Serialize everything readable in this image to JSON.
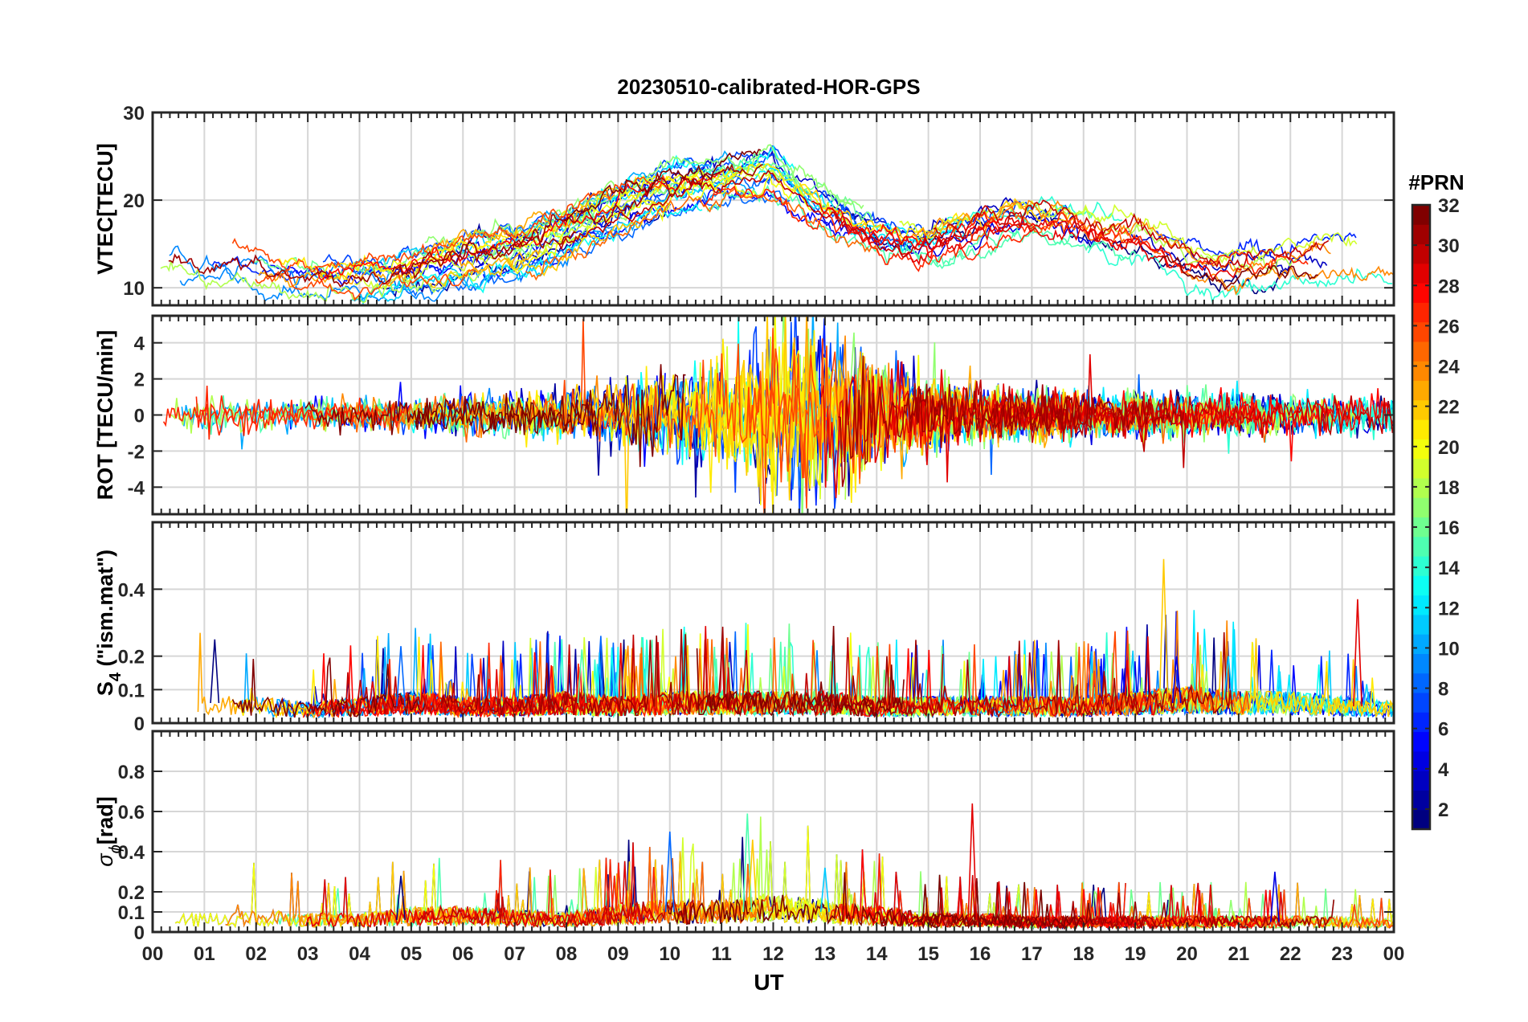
{
  "chart_data": {
    "type": "line",
    "title": "20230510-calibrated-HOR-GPS",
    "xlabel": "UT",
    "x_ticks": [
      "00",
      "01",
      "02",
      "03",
      "04",
      "05",
      "06",
      "07",
      "08",
      "09",
      "10",
      "11",
      "12",
      "13",
      "14",
      "15",
      "16",
      "17",
      "18",
      "19",
      "20",
      "21",
      "22",
      "23",
      "00"
    ],
    "x_range_hours": [
      0,
      24
    ],
    "colorbar": {
      "label": "#PRN",
      "range": [
        1,
        32
      ],
      "ticks": [
        "2",
        "4",
        "6",
        "8",
        "10",
        "12",
        "14",
        "16",
        "18",
        "20",
        "22",
        "24",
        "26",
        "28",
        "30",
        "32"
      ],
      "colormap": "jet"
    },
    "panels": [
      {
        "id": "vtec",
        "ylabel": "VTEC[TECU]",
        "ylim": [
          8,
          30
        ],
        "yticks": [
          10,
          20,
          30
        ],
        "ytick_labels": [
          "10",
          "20",
          "30"
        ],
        "description_profile": "mean VTEC per hour",
        "profile": [
          14,
          13,
          12,
          11,
          11,
          12,
          13,
          14,
          16,
          19,
          21,
          22,
          23,
          19,
          16,
          15,
          17,
          18,
          17,
          16,
          13,
          12,
          13,
          14,
          13
        ]
      },
      {
        "id": "rot",
        "ylabel": "ROT [TECU/min]",
        "ylim": [
          -5.5,
          5.5
        ],
        "yticks": [
          -4,
          -2,
          0,
          2,
          4
        ],
        "ytick_labels": [
          "-4",
          "-2",
          "0",
          "2",
          "4"
        ],
        "profile": [
          0.8,
          0.9,
          0.8,
          0.7,
          0.7,
          0.8,
          0.9,
          1.0,
          1.0,
          1.5,
          2.2,
          2.4,
          4.2,
          4.0,
          2.8,
          1.8,
          1.3,
          1.1,
          1.1,
          1.0,
          1.0,
          0.9,
          0.9,
          0.9,
          0.8
        ]
      },
      {
        "id": "s4",
        "ylabel_main": "S",
        "ylabel_sub": "4",
        "ylabel_suffix": " (\"ism.mat\")",
        "ylim": [
          0,
          0.6
        ],
        "yticks": [
          0,
          0.1,
          0.2,
          0.4
        ],
        "ytick_labels": [
          "0",
          "0.1",
          "0.2",
          "0.4"
        ],
        "profile": [
          0.03,
          0.06,
          0.05,
          0.04,
          0.05,
          0.06,
          0.05,
          0.05,
          0.06,
          0.05,
          0.06,
          0.06,
          0.06,
          0.06,
          0.05,
          0.05,
          0.05,
          0.05,
          0.05,
          0.06,
          0.07,
          0.06,
          0.06,
          0.05,
          0.04
        ],
        "spikes": [
          [
            1.2,
            0.25
          ],
          [
            4.8,
            0.23
          ],
          [
            8.3,
            0.22
          ],
          [
            19.55,
            0.49
          ],
          [
            23.3,
            0.37
          ],
          [
            19.8,
            0.2
          ],
          [
            20.8,
            0.2
          ]
        ]
      },
      {
        "id": "sigma_phi",
        "ylabel_main": "σ",
        "ylabel_sub": "ϕ",
        "ylabel_suffix": "[rad]",
        "ylim": [
          0,
          1.0
        ],
        "yticks": [
          0,
          0.1,
          0.2,
          0.4,
          0.6,
          0.8
        ],
        "ytick_labels": [
          "0",
          "0.1",
          "0.2",
          "0.4",
          "0.6",
          "0.8"
        ],
        "profile": [
          0.05,
          0.06,
          0.07,
          0.06,
          0.06,
          0.08,
          0.08,
          0.07,
          0.06,
          0.09,
          0.1,
          0.1,
          0.12,
          0.1,
          0.08,
          0.06,
          0.06,
          0.05,
          0.05,
          0.05,
          0.05,
          0.05,
          0.05,
          0.05,
          0.04
        ],
        "spikes": [
          [
            4.8,
            0.28
          ],
          [
            10.0,
            0.5
          ],
          [
            11.5,
            0.59
          ],
          [
            11.6,
            0.46
          ],
          [
            15.85,
            0.64
          ],
          [
            21.7,
            0.3
          ],
          [
            13.0,
            0.32
          ]
        ]
      }
    ],
    "series_count": 32
  }
}
